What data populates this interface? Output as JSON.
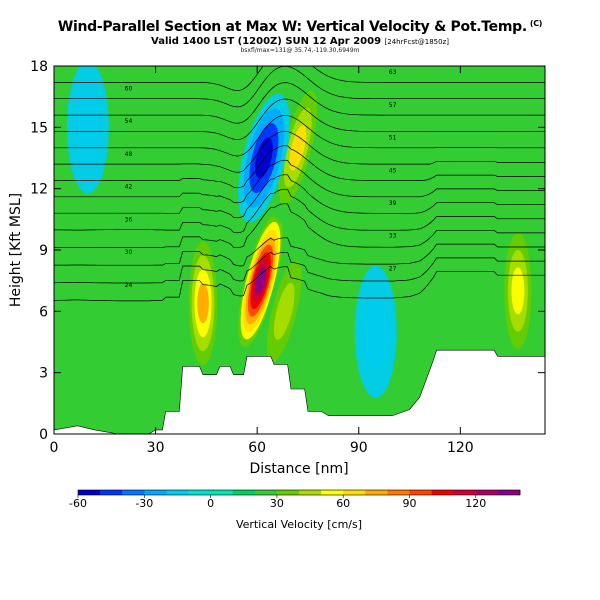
{
  "header": {
    "title": "Wind-Parallel Section at Max W: Vertical Velocity & Pot.Temp.",
    "copyright_mark": "(C)",
    "valid_line": "Valid 1400 LST (1200Z) SUN 12 Apr 2009",
    "valid_suffix": "[24hrFcst@1850z]",
    "location_line": "bsxfl/max=131@ 35.74,-119.30,6949m"
  },
  "chart_data": {
    "type": "heatmap",
    "xlabel": "Distance [nm]",
    "ylabel": "Height [Kft MSL]",
    "xlim": [
      0,
      145
    ],
    "ylim": [
      0,
      18
    ],
    "x_ticks": [
      0,
      30,
      60,
      90,
      120
    ],
    "y_ticks": [
      0,
      3,
      6,
      9,
      12,
      15,
      18
    ],
    "colorbar": {
      "label": "Vertical Velocity [cm/s]",
      "ticks": [
        -60,
        -30,
        0,
        30,
        60,
        90,
        120
      ],
      "range": [
        -60,
        140
      ],
      "colors": [
        "#0000cc",
        "#0033ff",
        "#0077ff",
        "#00aaff",
        "#00ccee",
        "#00e0d0",
        "#00e6b0",
        "#00d060",
        "#33cc33",
        "#66cc00",
        "#aadd00",
        "#ffff00",
        "#ffdd00",
        "#ffaa00",
        "#ff7700",
        "#ff4400",
        "#ee0000",
        "#cc0033",
        "#aa0066",
        "#880088"
      ]
    },
    "field_background": "#33cc33",
    "features": [
      {
        "kind": "updraft",
        "x": 61,
        "y": 7.5,
        "peak": 131
      },
      {
        "kind": "updraft",
        "x": 44,
        "y": 6.4,
        "peak": 70
      },
      {
        "kind": "updraft",
        "x": 72,
        "y": 14.0,
        "peak": 60
      },
      {
        "kind": "updraft",
        "x": 68,
        "y": 6.0,
        "peak": 45
      },
      {
        "kind": "updraft",
        "x": 137,
        "y": 7.0,
        "peak": 55
      },
      {
        "kind": "downdraft",
        "x": 62,
        "y": 13.5,
        "peak": -55
      },
      {
        "kind": "downdraft",
        "x": 95,
        "y": 5.0,
        "peak": -20
      },
      {
        "kind": "downdraft",
        "x": 10,
        "y": 15.0,
        "peak": -20
      }
    ],
    "terrain": [
      [
        0,
        0.2
      ],
      [
        7,
        0.4
      ],
      [
        12,
        0.2
      ],
      [
        19,
        0.0
      ],
      [
        28,
        0.0
      ],
      [
        30,
        0.2
      ],
      [
        32,
        0.2
      ],
      [
        33,
        1.1
      ],
      [
        37,
        1.1
      ],
      [
        38,
        3.3
      ],
      [
        43,
        3.3
      ],
      [
        44,
        2.9
      ],
      [
        48,
        2.9
      ],
      [
        49,
        3.3
      ],
      [
        52,
        3.3
      ],
      [
        53,
        2.9
      ],
      [
        56,
        2.9
      ],
      [
        57,
        3.8
      ],
      [
        64,
        3.8
      ],
      [
        65,
        3.4
      ],
      [
        69,
        3.4
      ],
      [
        70,
        2.2
      ],
      [
        74,
        2.2
      ],
      [
        75,
        1.1
      ],
      [
        79,
        1.1
      ],
      [
        81,
        0.9
      ],
      [
        90,
        0.9
      ],
      [
        100,
        0.9
      ],
      [
        105,
        1.2
      ],
      [
        108,
        1.8
      ],
      [
        112,
        3.6
      ],
      [
        113,
        4.1
      ],
      [
        130,
        4.1
      ],
      [
        131,
        3.8
      ],
      [
        145,
        3.8
      ]
    ],
    "isentropes": [
      {
        "label": "24",
        "base": 6.8
      },
      {
        "label": "27",
        "base": 7.6
      },
      {
        "label": "30",
        "base": 8.4
      },
      {
        "label": "33",
        "base": 9.2
      },
      {
        "label": "36",
        "base": 10.0
      },
      {
        "label": "39",
        "base": 10.8
      },
      {
        "label": "42",
        "base": 11.6
      },
      {
        "label": "45",
        "base": 12.4
      },
      {
        "label": "48",
        "base": 13.2
      },
      {
        "label": "51",
        "base": 14.0
      },
      {
        "label": "54",
        "base": 14.8
      },
      {
        "label": "57",
        "base": 15.6
      },
      {
        "label": "60",
        "base": 16.4
      },
      {
        "label": "63",
        "base": 17.2
      }
    ]
  }
}
